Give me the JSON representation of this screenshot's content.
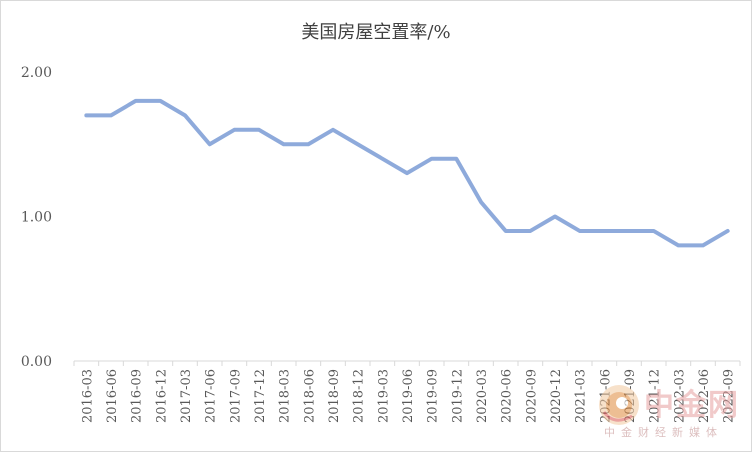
{
  "chart_data": {
    "type": "line",
    "title": "美国房屋空置率/%",
    "xlabel": "",
    "ylabel": "",
    "ylim": [
      0,
      2
    ],
    "yticks": [
      "0.00",
      "1.00",
      "2.00"
    ],
    "grid": false,
    "legend": "none",
    "line_color": "#8eaadb",
    "x": [
      "2016-03",
      "2016-06",
      "2016-09",
      "2016-12",
      "2017-03",
      "2017-06",
      "2017-09",
      "2017-12",
      "2018-03",
      "2018-06",
      "2018-09",
      "2018-12",
      "2019-03",
      "2019-06",
      "2019-09",
      "2019-12",
      "2020-03",
      "2020-06",
      "2020-09",
      "2020-12",
      "2021-03",
      "2021-06",
      "2021-09",
      "2021-12",
      "2022-03",
      "2022-06",
      "2022-09"
    ],
    "series": [
      {
        "values": [
          1.7,
          1.7,
          1.8,
          1.8,
          1.7,
          1.5,
          1.6,
          1.6,
          1.5,
          1.5,
          1.6,
          1.5,
          1.4,
          1.3,
          1.4,
          1.4,
          1.1,
          0.9,
          0.9,
          1.0,
          0.9,
          0.9,
          0.9,
          0.9,
          0.8,
          0.8,
          0.9
        ]
      }
    ]
  },
  "watermark": {
    "name": "中金网",
    "sub": "中金财经新媒体",
    "colors": {
      "primary": "#e08a3c",
      "accent": "#d9534f"
    }
  }
}
